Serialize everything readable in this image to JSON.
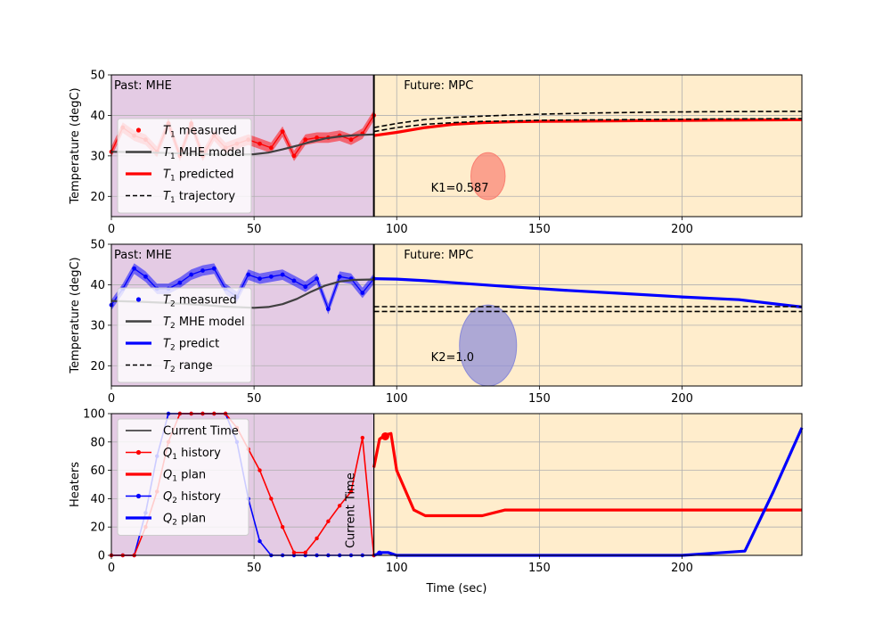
{
  "chart_data": [
    {
      "type": "line",
      "ylabel": "Temperature (degC)",
      "xlim": [
        0,
        242
      ],
      "ylim": [
        15,
        50
      ],
      "xticks": [
        0,
        50,
        100,
        150,
        200
      ],
      "yticks": [
        20,
        30,
        40,
        50
      ],
      "grid": true,
      "current_time": 92,
      "annotations": {
        "past": "Past: MHE",
        "future": "Future: MPC",
        "gain": "K1=0.587"
      },
      "colors": {
        "past_bg": "#e4cbe4",
        "future_bg": "#ffedcc",
        "measured": "#ff0000",
        "model": "#404040",
        "predicted": "#ff0000",
        "gain_ellipse": "#fa8072"
      },
      "gain_ellipse": {
        "cx": 132,
        "cy": 25,
        "rx": 6,
        "ry": 5.8
      },
      "legend": {
        "position": "lower-left",
        "entries": [
          {
            "sym": "T",
            "sub": "1",
            "text": " measured"
          },
          {
            "sym": "T",
            "sub": "1",
            "text": " MHE model"
          },
          {
            "sym": "T",
            "sub": "1",
            "text": " predicted"
          },
          {
            "sym": "T",
            "sub": "1",
            "text": " trajectory"
          }
        ]
      },
      "series": {
        "measured": {
          "x": [
            0,
            4,
            8,
            12,
            16,
            20,
            24,
            28,
            32,
            36,
            40,
            44,
            48,
            52,
            56,
            60,
            64,
            68,
            72,
            76,
            80,
            84,
            88,
            92
          ],
          "y": [
            31,
            37,
            35,
            34,
            31,
            38,
            30,
            38,
            30,
            35,
            32,
            33,
            34,
            33,
            32,
            36,
            30,
            34,
            34.5,
            34.5,
            35,
            34,
            35.5,
            40
          ]
        },
        "mhe_model": {
          "x": [
            0,
            10,
            20,
            30,
            40,
            50,
            55,
            60,
            65,
            70,
            75,
            80,
            85,
            92
          ],
          "y": [
            31,
            30.9,
            30.7,
            30.5,
            30.3,
            30.4,
            30.8,
            31.6,
            32.5,
            33.5,
            34.3,
            34.8,
            35.1,
            35.3
          ]
        },
        "predicted": {
          "x": [
            92,
            100,
            110,
            120,
            130,
            140,
            150,
            170,
            190,
            210,
            242
          ],
          "y": [
            35,
            35.8,
            37,
            37.8,
            38.2,
            38.4,
            38.5,
            38.6,
            38.7,
            38.8,
            38.9
          ]
        },
        "trajectory_upper": {
          "x": [
            92,
            100,
            110,
            120,
            130,
            140,
            150,
            170,
            190,
            210,
            242
          ],
          "y": [
            37,
            38,
            39,
            39.5,
            39.8,
            40.1,
            40.3,
            40.6,
            40.8,
            40.9,
            41
          ]
        },
        "trajectory_lower": {
          "x": [
            92,
            100,
            110,
            120,
            130,
            140,
            150,
            170,
            190,
            210,
            242
          ],
          "y": [
            36,
            37,
            37.8,
            38.2,
            38.5,
            38.6,
            38.8,
            38.9,
            39,
            39.1,
            39.2
          ]
        }
      }
    },
    {
      "type": "line",
      "ylabel": "Temperature (degC)",
      "xlim": [
        0,
        242
      ],
      "ylim": [
        15,
        50
      ],
      "xticks": [
        0,
        50,
        100,
        150,
        200
      ],
      "yticks": [
        20,
        30,
        40,
        50
      ],
      "grid": true,
      "current_time": 92,
      "annotations": {
        "past": "Past: MHE",
        "future": "Future: MPC",
        "gain": "K2=1.0"
      },
      "colors": {
        "past_bg": "#e4cbe4",
        "future_bg": "#ffedcc",
        "measured": "#0000ff",
        "model": "#404040",
        "predicted": "#0000ff",
        "gain_ellipse": "#8a8ad8"
      },
      "gain_ellipse": {
        "cx": 132,
        "cy": 25,
        "rx": 10,
        "ry": 10
      },
      "legend": {
        "position": "lower-left",
        "entries": [
          {
            "sym": "T",
            "sub": "2",
            "text": " measured"
          },
          {
            "sym": "T",
            "sub": "2",
            "text": " MHE model"
          },
          {
            "sym": "T",
            "sub": "2",
            "text": " predict"
          },
          {
            "sym": "T",
            "sub": "2",
            "text": " range"
          }
        ]
      },
      "series": {
        "measured": {
          "x": [
            0,
            4,
            8,
            12,
            16,
            20,
            24,
            28,
            32,
            36,
            40,
            44,
            48,
            52,
            56,
            60,
            64,
            68,
            72,
            76,
            80,
            84,
            88,
            92
          ],
          "y": [
            35,
            39,
            44,
            42,
            39,
            39,
            40.5,
            42.5,
            43.5,
            44,
            39,
            37,
            42.5,
            41.5,
            42,
            42.5,
            41,
            39.5,
            41.5,
            34,
            42,
            41.5,
            38,
            41.5
          ]
        },
        "mhe_model": {
          "x": [
            0,
            10,
            20,
            30,
            40,
            50,
            55,
            60,
            65,
            70,
            75,
            80,
            85,
            92
          ],
          "y": [
            36,
            35.8,
            35.5,
            35.1,
            34.6,
            34.3,
            34.5,
            35.2,
            36.5,
            38.3,
            39.8,
            40.8,
            41.2,
            41.3
          ]
        },
        "predicted": {
          "x": [
            92,
            100,
            110,
            120,
            140,
            160,
            180,
            200,
            220,
            242
          ],
          "y": [
            41.5,
            41.4,
            41,
            40.5,
            39.5,
            38.6,
            37.8,
            37,
            36.3,
            34.5
          ]
        },
        "range_upper": {
          "x": [
            92,
            242
          ],
          "y": [
            34.6,
            34.6
          ]
        },
        "range_lower": {
          "x": [
            92,
            242
          ],
          "y": [
            33.4,
            33.4
          ]
        }
      }
    },
    {
      "type": "line",
      "xlabel": "Time (sec)",
      "ylabel": "Heaters",
      "xlim": [
        0,
        242
      ],
      "ylim": [
        0,
        100
      ],
      "xticks": [
        0,
        50,
        100,
        150,
        200
      ],
      "yticks": [
        0,
        20,
        40,
        60,
        80,
        100
      ],
      "grid": true,
      "current_time": 92,
      "annotations": {
        "current_time": "Current Time"
      },
      "colors": {
        "past_bg": "#e4cbe4",
        "future_bg": "#ffedcc",
        "q1": "#ff0000",
        "q2": "#0000ff"
      },
      "legend": {
        "position": "upper-left",
        "entries": [
          {
            "sym": "",
            "sub": "",
            "text": "Current Time"
          },
          {
            "sym": "Q",
            "sub": "1",
            "text": " history"
          },
          {
            "sym": "Q",
            "sub": "1",
            "text": " plan"
          },
          {
            "sym": "Q",
            "sub": "2",
            "text": " history"
          },
          {
            "sym": "Q",
            "sub": "2",
            "text": " plan"
          }
        ]
      },
      "series": {
        "q1_history": {
          "x": [
            0,
            4,
            8,
            12,
            16,
            20,
            24,
            28,
            32,
            36,
            40,
            44,
            48,
            52,
            56,
            60,
            64,
            68,
            72,
            76,
            80,
            84,
            88,
            92
          ],
          "y": [
            0,
            0,
            0,
            20,
            45,
            80,
            100,
            100,
            100,
            100,
            100,
            90,
            75,
            60,
            40,
            20,
            2,
            2,
            12,
            24,
            35,
            45,
            83,
            0
          ]
        },
        "q1_plan": {
          "x": [
            92,
            94,
            96,
            98,
            100,
            106,
            110,
            120,
            130,
            138,
            150,
            180,
            210,
            242
          ],
          "y": [
            62,
            82,
            85,
            86,
            60,
            32,
            28,
            28,
            28,
            32,
            32,
            32,
            32,
            32
          ]
        },
        "q2_history": {
          "x": [
            0,
            4,
            8,
            12,
            16,
            20,
            24,
            28,
            32,
            36,
            40,
            44,
            48,
            52,
            56,
            60,
            64,
            68,
            72,
            76,
            80,
            84,
            88,
            92
          ],
          "y": [
            0,
            0,
            0,
            30,
            70,
            100,
            100,
            100,
            100,
            100,
            100,
            80,
            40,
            10,
            0,
            0,
            0,
            0,
            0,
            0,
            0,
            0,
            0,
            0
          ]
        },
        "q2_plan": {
          "x": [
            92,
            95,
            97,
            100,
            150,
            200,
            222,
            232,
            242
          ],
          "y": [
            0,
            2,
            2,
            0,
            0,
            0,
            3,
            45,
            90
          ]
        }
      }
    }
  ]
}
